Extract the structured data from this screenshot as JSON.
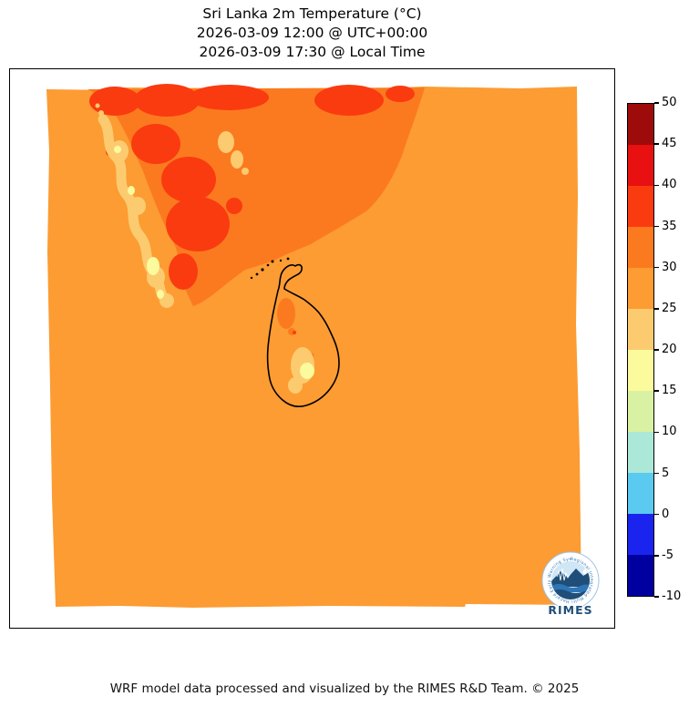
{
  "title": {
    "line1": "Sri Lanka 2m Temperature (°C)",
    "line2": "2026-03-09 12:00 @ UTC+00:00",
    "line3": "2026-03-09 17:30 @ Local Time"
  },
  "footer": {
    "credit": "WRF model data processed and visualized by the RIMES R&D Team. © 2025"
  },
  "colors": {
    "background": "#ffffff",
    "axes_border": "#000000",
    "coastline": "#000000",
    "c45_50": "#9E0B0B",
    "c40_45": "#E81010",
    "c35_40": "#FA3B10",
    "c30_35": "#FC7A1F",
    "c25_30": "#FC9C33",
    "c20_25": "#FCCB70",
    "c15_20": "#FBFA9C",
    "c10_15": "#D9F1A2",
    "c5_10": "#ACE8D8",
    "c0_5": "#5ACAF0",
    "cm5_0": "#1A24EE",
    "cm10_m5": "#0000A0",
    "logo_dark_blue": "#1F4E79",
    "logo_mid_blue": "#2E75B6",
    "logo_light_blue": "#CFE6F5"
  },
  "colorbar": {
    "ticks": [
      "50",
      "45",
      "40",
      "35",
      "30",
      "25",
      "20",
      "15",
      "10",
      "5",
      "0",
      "-5",
      "-10"
    ],
    "bands_top_to_bottom": [
      "#9E0B0B",
      "#E81010",
      "#FA3B10",
      "#FC7A1F",
      "#FC9C33",
      "#FCCB70",
      "#FBFA9C",
      "#D9F1A2",
      "#ACE8D8",
      "#5ACAF0",
      "#1A24EE",
      "#0000A0"
    ]
  },
  "logo": {
    "name": "RIMES",
    "ring_text": "Regional Integrated Multi Hazard Early Warning System"
  },
  "chart_data": {
    "type": "heatmap",
    "title": "Sri Lanka 2m Temperature (°C)",
    "subtitle_utc": "2026-03-09 12:00 @ UTC+00:00",
    "subtitle_local": "2026-03-09 17:30 @ Local Time",
    "units": "°C",
    "legend_position": "right",
    "colorbar_levels_top_to_bottom": [
      50,
      45,
      40,
      35,
      30,
      25,
      20,
      15,
      10,
      5,
      0,
      -5,
      -10
    ],
    "colorbar_colors_top_to_bottom": [
      "#9E0B0B",
      "#E81010",
      "#FA3B10",
      "#FC7A1F",
      "#FC9C33",
      "#FCCB70",
      "#FBFA9C",
      "#D9F1A2",
      "#ACE8D8",
      "#5ACAF0",
      "#1A24EE",
      "#0000A0"
    ],
    "observed_field": [
      {
        "region": "Ocean / most of map domain background",
        "temperature_band_c": "25–30"
      },
      {
        "region": "Southern India interior plains",
        "temperature_band_c": "30–35"
      },
      {
        "region": "Southern India hottest inland patches",
        "temperature_band_c": "35–45"
      },
      {
        "region": "Western Ghats ridge (India, pale snake of cool colors)",
        "temperature_band_c": "15–25"
      },
      {
        "region": "Sri Lanka coastal lowlands",
        "temperature_band_c": "25–30"
      },
      {
        "region": "Sri Lanka north-central warm patch",
        "temperature_band_c": "30–35"
      },
      {
        "region": "Sri Lanka central highlands (pale patch)",
        "temperature_band_c": "15–25"
      }
    ]
  }
}
